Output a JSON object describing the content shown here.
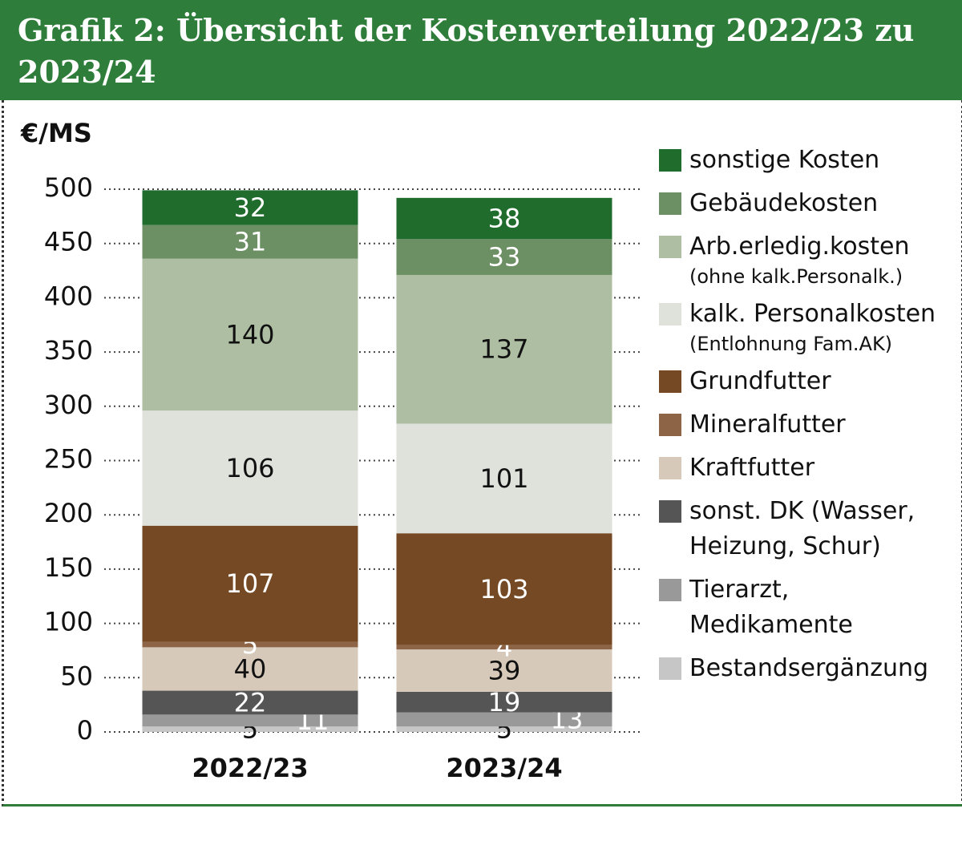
{
  "chart_data": {
    "type": "stacked_bar",
    "title": "Grafik 2: Übersicht der Kostenverteilung 2022/23 zu 2023/24",
    "y_label": "€/MS",
    "categories": [
      "2022/23",
      "2023/24"
    ],
    "ylim": [
      0,
      500
    ],
    "yticks": [
      0,
      50,
      100,
      150,
      200,
      250,
      300,
      350,
      400,
      450,
      500
    ],
    "grid": true,
    "legend": "right",
    "series": [
      {
        "name": "Bestandsergänzung",
        "color": "#c6c6c6",
        "label_color": "#111111",
        "values": [
          5,
          5
        ]
      },
      {
        "name": "Tierarzt, Medikamente",
        "color": "#999999",
        "label_color": "#ffffff",
        "values": [
          11,
          13
        ]
      },
      {
        "name": "sonst. DK (Wasser, Heizung, Schur)",
        "color": "#555555",
        "label_color": "#ffffff",
        "values": [
          22,
          19
        ]
      },
      {
        "name": "Kraftfutter",
        "color": "#d6c9b9",
        "label_color": "#111111",
        "values": [
          40,
          39
        ]
      },
      {
        "name": "Mineralfutter",
        "color": "#8e6446",
        "label_color": "#ffffff",
        "values": [
          5,
          4
        ]
      },
      {
        "name": "Grundfutter",
        "color": "#744923",
        "label_color": "#ffffff",
        "values": [
          107,
          103
        ]
      },
      {
        "name": "kalk. Personalkosten",
        "note": "(Entlohnung Fam.AK)",
        "color": "#dfe2db",
        "label_color": "#111111",
        "values": [
          106,
          101
        ]
      },
      {
        "name": "Arb.erledig.kosten",
        "note": "(ohne kalk.Personalk.)",
        "color": "#aebea3",
        "label_color": "#111111",
        "values": [
          140,
          137
        ]
      },
      {
        "name": "Gebäudekosten",
        "color": "#6d8f64",
        "label_color": "#ffffff",
        "values": [
          31,
          33
        ]
      },
      {
        "name": "sonstige Kosten",
        "color": "#1f6c2d",
        "label_color": "#ffffff",
        "values": [
          32,
          38
        ]
      }
    ]
  }
}
